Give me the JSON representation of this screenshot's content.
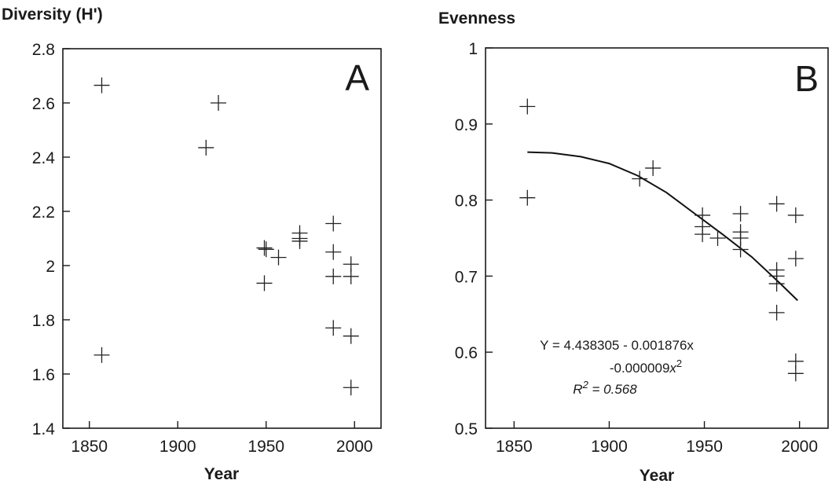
{
  "chart_data": [
    {
      "type": "scatter",
      "title": "Diversity (H')",
      "panel_label": "A",
      "xlabel": "Year",
      "ylabel": "",
      "xlim": [
        1835,
        2015
      ],
      "ylim": [
        1.4,
        2.8
      ],
      "xticks": [
        1850,
        1900,
        1950,
        2000
      ],
      "yticks": [
        1.4,
        1.6,
        1.8,
        2.0,
        2.2,
        2.4,
        2.6,
        2.8
      ],
      "ytick_labels": [
        "1.4",
        "1.6",
        "1.8",
        "2",
        "2.2",
        "2.4",
        "2.6",
        "2.8"
      ],
      "grid": false,
      "series": [
        {
          "marker": "plus",
          "x": [
            1857,
            1857,
            1916,
            1923,
            1949,
            1950,
            1949,
            1957,
            1969,
            1969,
            1969,
            1988,
            1988,
            1988,
            1988,
            1998,
            1998,
            1998,
            1998
          ],
          "y": [
            2.665,
            1.67,
            2.435,
            2.6,
            2.065,
            2.06,
            1.935,
            2.03,
            2.12,
            2.1,
            2.09,
            2.155,
            2.05,
            1.96,
            1.77,
            2.005,
            1.96,
            1.74,
            1.55
          ]
        }
      ]
    },
    {
      "type": "scatter",
      "title": "Evenness",
      "panel_label": "B",
      "xlabel": "Year",
      "ylabel": "",
      "xlim": [
        1835,
        2015
      ],
      "ylim": [
        0.5,
        1.0
      ],
      "xticks": [
        1850,
        1900,
        1950,
        2000
      ],
      "yticks": [
        0.5,
        0.6,
        0.7,
        0.8,
        0.9,
        1.0
      ],
      "ytick_labels": [
        "0.5",
        "0.6",
        "0.7",
        "0.8",
        "0.9",
        "1"
      ],
      "grid": false,
      "series": [
        {
          "marker": "plus",
          "x": [
            1857,
            1857,
            1916,
            1923,
            1949,
            1949,
            1949,
            1957,
            1969,
            1969,
            1969,
            1969,
            1988,
            1988,
            1988,
            1988,
            1988,
            1998,
            1998,
            1998,
            1998
          ],
          "y": [
            0.923,
            0.803,
            0.828,
            0.842,
            0.78,
            0.765,
            0.755,
            0.75,
            0.782,
            0.758,
            0.75,
            0.735,
            0.795,
            0.708,
            0.7,
            0.69,
            0.652,
            0.78,
            0.723,
            0.588,
            0.572
          ]
        }
      ],
      "fit_curve": {
        "x": [
          1857,
          1870,
          1885,
          1900,
          1915,
          1930,
          1945,
          1960,
          1975,
          1990,
          1999
        ],
        "y": [
          0.863,
          0.862,
          0.857,
          0.848,
          0.832,
          0.81,
          0.782,
          0.754,
          0.725,
          0.69,
          0.668
        ]
      },
      "annotation": {
        "line1": "Y = 4.438305 - 0.001876x",
        "line2_main": "-0.000009",
        "line2_var": "x",
        "line2_exp": "2",
        "line3_main": "R",
        "line3_exp": "2",
        "line3_rest": " = 0.568"
      }
    }
  ]
}
